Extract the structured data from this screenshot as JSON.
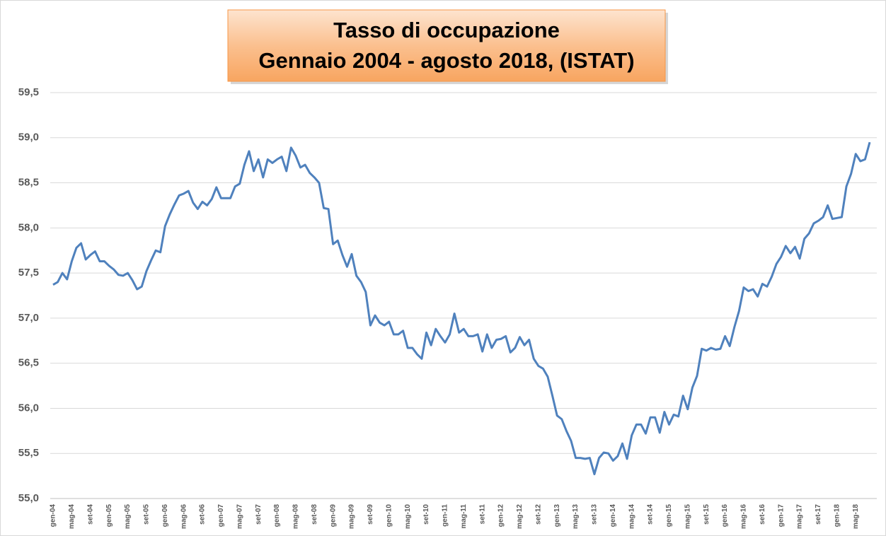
{
  "chart_data": {
    "type": "line",
    "title": "Tasso di occupazione",
    "subtitle": "Gennaio 2004 - agosto 2018, (ISTAT)",
    "categories": [
      "gen-04",
      null,
      null,
      null,
      "mag-04",
      null,
      null,
      null,
      "set-04",
      null,
      null,
      null,
      "gen-05",
      null,
      null,
      null,
      "mag-05",
      null,
      null,
      null,
      "set-05",
      null,
      null,
      null,
      "gen-06",
      null,
      null,
      null,
      "mag-06",
      null,
      null,
      null,
      "set-06",
      null,
      null,
      null,
      "gen-07",
      null,
      null,
      null,
      "mag-07",
      null,
      null,
      null,
      "set-07",
      null,
      null,
      null,
      "gen-08",
      null,
      null,
      null,
      "mag-08",
      null,
      null,
      null,
      "set-08",
      null,
      null,
      null,
      "gen-09",
      null,
      null,
      null,
      "mag-09",
      null,
      null,
      null,
      "set-09",
      null,
      null,
      null,
      "gen-10",
      null,
      null,
      null,
      "mag-10",
      null,
      null,
      null,
      "set-10",
      null,
      null,
      null,
      "gen-11",
      null,
      null,
      null,
      "mag-11",
      null,
      null,
      null,
      "set-11",
      null,
      null,
      null,
      "gen-12",
      null,
      null,
      null,
      "mag-12",
      null,
      null,
      null,
      "set-12",
      null,
      null,
      null,
      "gen-13",
      null,
      null,
      null,
      "mag-13",
      null,
      null,
      null,
      "set-13",
      null,
      null,
      null,
      "gen-14",
      null,
      null,
      null,
      "mag-14",
      null,
      null,
      null,
      "set-14",
      null,
      null,
      null,
      "gen-15",
      null,
      null,
      null,
      "mag-15",
      null,
      null,
      null,
      "set-15",
      null,
      null,
      null,
      "gen-16",
      null,
      null,
      null,
      "mag-16",
      null,
      null,
      null,
      "set-16",
      null,
      null,
      null,
      "gen-17",
      null,
      null,
      null,
      "mag-17",
      null,
      null,
      null,
      "set-17",
      null,
      null,
      null,
      "gen-18",
      null,
      null,
      null,
      "mag-18",
      null,
      null,
      null
    ],
    "values": [
      57.37,
      57.4,
      57.5,
      57.43,
      57.63,
      57.78,
      57.83,
      57.65,
      57.7,
      57.74,
      57.63,
      57.63,
      57.58,
      57.54,
      57.48,
      57.47,
      57.5,
      57.42,
      57.32,
      57.35,
      57.52,
      57.64,
      57.75,
      57.73,
      58.02,
      58.15,
      58.26,
      58.36,
      58.38,
      58.41,
      58.28,
      58.21,
      58.29,
      58.25,
      58.32,
      58.45,
      58.33,
      58.33,
      58.33,
      58.46,
      58.49,
      58.7,
      58.85,
      58.63,
      58.76,
      58.56,
      58.76,
      58.72,
      58.76,
      58.79,
      58.63,
      58.89,
      58.8,
      58.67,
      58.7,
      58.61,
      58.56,
      58.5,
      58.22,
      58.21,
      57.82,
      57.86,
      57.7,
      57.57,
      57.71,
      57.47,
      57.4,
      57.29,
      56.92,
      57.03,
      56.95,
      56.92,
      56.96,
      56.82,
      56.82,
      56.86,
      56.67,
      56.67,
      56.6,
      56.55,
      56.84,
      56.7,
      56.88,
      56.8,
      56.73,
      56.82,
      57.05,
      56.84,
      56.88,
      56.8,
      56.8,
      56.82,
      56.63,
      56.82,
      56.67,
      56.76,
      56.77,
      56.8,
      56.62,
      56.67,
      56.79,
      56.7,
      56.76,
      56.55,
      56.47,
      56.44,
      56.35,
      56.14,
      55.92,
      55.88,
      55.75,
      55.64,
      55.45,
      55.45,
      55.44,
      55.45,
      55.27,
      55.45,
      55.51,
      55.5,
      55.42,
      55.47,
      55.61,
      55.44,
      55.7,
      55.82,
      55.82,
      55.72,
      55.9,
      55.9,
      55.73,
      55.96,
      55.82,
      55.93,
      55.91,
      56.14,
      55.99,
      56.23,
      56.36,
      56.66,
      56.64,
      56.67,
      56.65,
      56.66,
      56.8,
      56.69,
      56.9,
      57.08,
      57.34,
      57.3,
      57.32,
      57.24,
      57.38,
      57.35,
      57.46,
      57.6,
      57.68,
      57.8,
      57.72,
      57.79,
      57.66,
      57.88,
      57.94,
      58.05,
      58.08,
      58.12,
      58.25,
      58.1,
      58.11,
      58.12,
      58.46,
      58.6,
      58.82,
      58.74,
      58.76,
      58.95
    ],
    "color": "#4f81bd",
    "ylim": [
      55,
      59.5
    ],
    "yticks": [
      {
        "value": 55,
        "label": "55,0"
      },
      {
        "value": 55.5,
        "label": "55,5"
      },
      {
        "value": 56,
        "label": "56,0"
      },
      {
        "value": 56.5,
        "label": "56,5"
      },
      {
        "value": 57,
        "label": "57,0"
      },
      {
        "value": 57.5,
        "label": "57,5"
      },
      {
        "value": 58,
        "label": "58,0"
      },
      {
        "value": 58.5,
        "label": "58,5"
      },
      {
        "value": 59,
        "label": "59,0"
      },
      {
        "value": 59.5,
        "label": "59,5"
      }
    ],
    "grid": true
  }
}
